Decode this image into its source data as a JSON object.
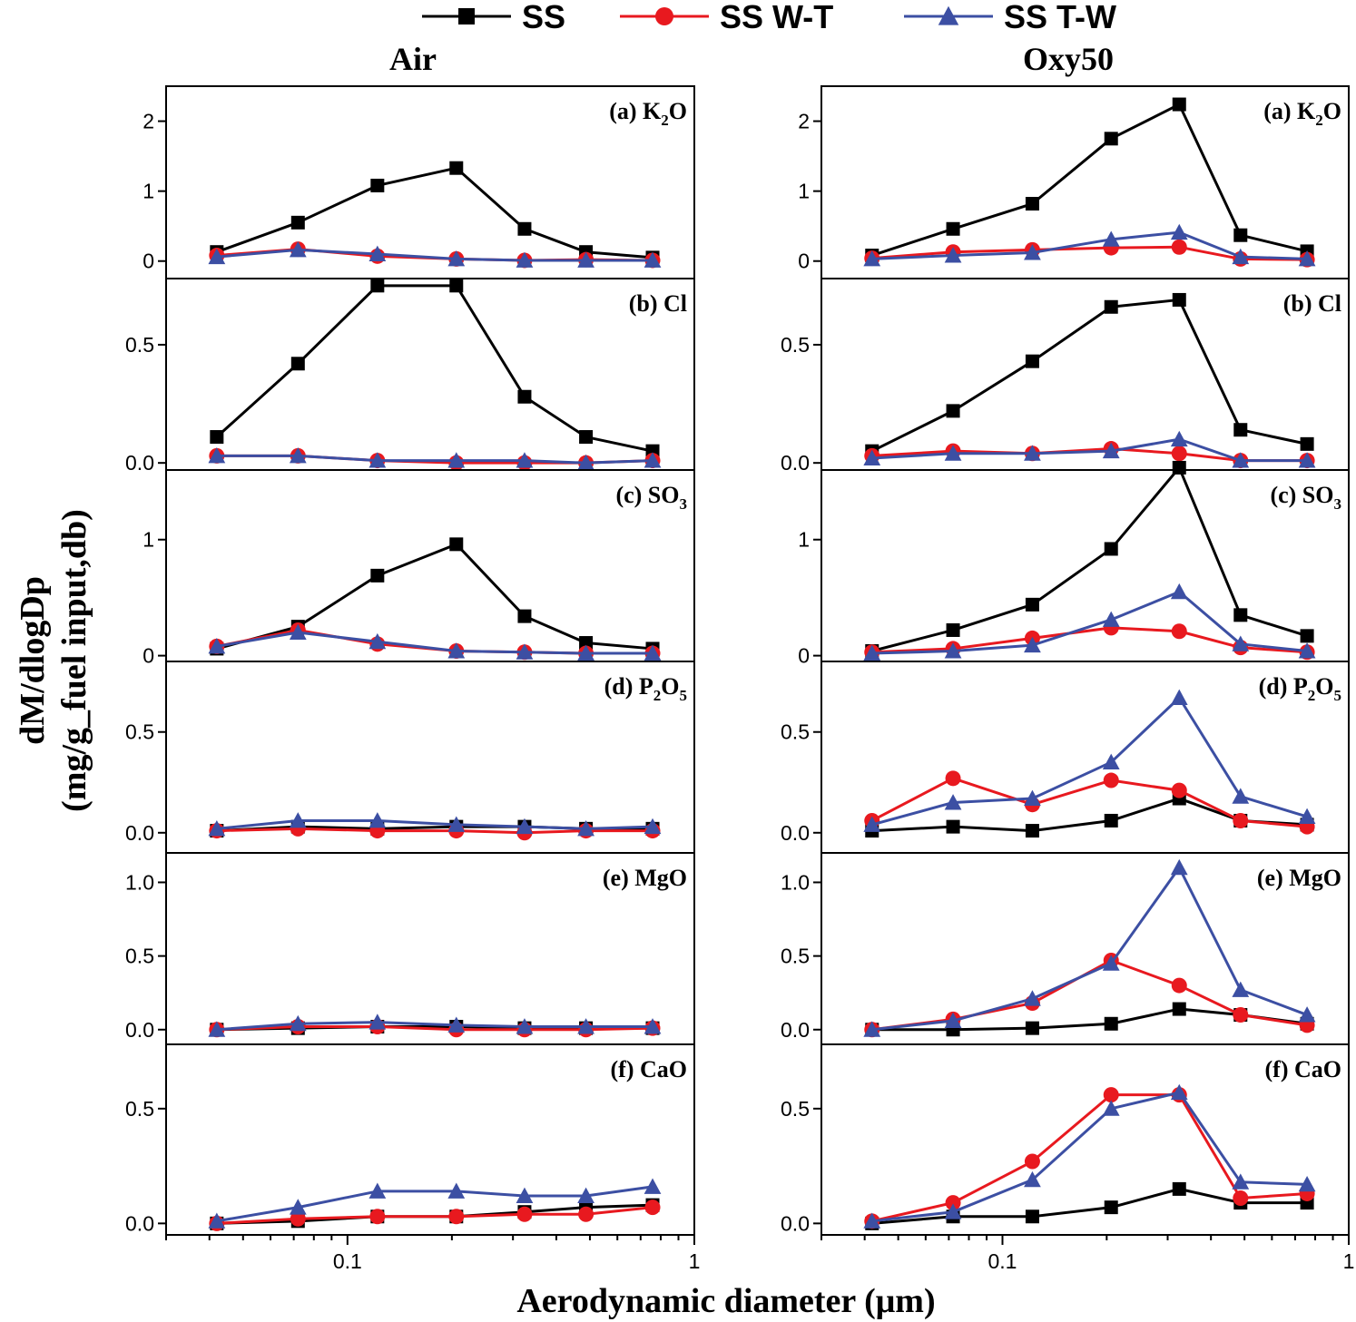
{
  "chart_data": {
    "type": "line",
    "xscale": "log",
    "xlim": [
      0.03,
      1
    ],
    "xticks": [
      {
        "value": 0.1,
        "label": "0.1"
      },
      {
        "value": 1,
        "label": "1"
      }
    ],
    "x": [
      0.042,
      0.072,
      0.122,
      0.206,
      0.324,
      0.487,
      0.758
    ],
    "xlabel": "Aerodynamic diameter (μm)",
    "ylabel_line1": "dM/dlogDp",
    "ylabel_line2": "(mg/g_fuel input,db)",
    "legend": [
      {
        "name": "SS",
        "color": "#000000",
        "marker": "square"
      },
      {
        "name": "SS W-T",
        "color": "#e8191f",
        "marker": "circle"
      },
      {
        "name": "SS T-W",
        "color": "#3c4fa3",
        "marker": "triangle"
      }
    ],
    "columns": [
      {
        "title": "Air",
        "panels": [
          {
            "label": "(a) K",
            "sub": "2",
            "tail": "O",
            "ylim": [
              -0.25,
              2.5
            ],
            "yticks": [
              {
                "value": 0,
                "label": "0"
              },
              {
                "value": 1,
                "label": "1"
              },
              {
                "value": 2,
                "label": "2"
              }
            ],
            "series": [
              {
                "name": "SS",
                "values": [
                  0.13,
                  0.55,
                  1.08,
                  1.33,
                  0.46,
                  0.13,
                  0.05
                ]
              },
              {
                "name": "SS W-T",
                "values": [
                  0.08,
                  0.17,
                  0.07,
                  0.03,
                  0.01,
                  0.02,
                  0.01
                ]
              },
              {
                "name": "SS T-W",
                "values": [
                  0.06,
                  0.16,
                  0.1,
                  0.03,
                  0.01,
                  0.01,
                  0.01
                ]
              }
            ]
          },
          {
            "label": "(b) Cl",
            "sub": "",
            "tail": "",
            "ylim": [
              -0.03,
              0.78
            ],
            "yticks": [
              {
                "value": 0,
                "label": "0.0"
              },
              {
                "value": 0.5,
                "label": "0.5"
              }
            ],
            "series": [
              {
                "name": "SS",
                "values": [
                  0.11,
                  0.42,
                  0.75,
                  0.75,
                  0.28,
                  0.11,
                  0.05
                ]
              },
              {
                "name": "SS W-T",
                "values": [
                  0.03,
                  0.03,
                  0.01,
                  0.0,
                  0.0,
                  0.0,
                  0.01
                ]
              },
              {
                "name": "SS T-W",
                "values": [
                  0.03,
                  0.03,
                  0.01,
                  0.01,
                  0.01,
                  0.0,
                  0.01
                ]
              }
            ]
          },
          {
            "label": "(c) SO",
            "sub": "3",
            "tail": "",
            "ylim": [
              -0.05,
              1.6
            ],
            "yticks": [
              {
                "value": 0,
                "label": "0"
              },
              {
                "value": 1,
                "label": "1"
              }
            ],
            "series": [
              {
                "name": "SS",
                "values": [
                  0.06,
                  0.25,
                  0.69,
                  0.96,
                  0.34,
                  0.11,
                  0.06
                ]
              },
              {
                "name": "SS W-T",
                "values": [
                  0.08,
                  0.22,
                  0.1,
                  0.04,
                  0.03,
                  0.02,
                  0.02
                ]
              },
              {
                "name": "SS T-W",
                "values": [
                  0.08,
                  0.2,
                  0.12,
                  0.04,
                  0.03,
                  0.02,
                  0.02
                ]
              }
            ]
          },
          {
            "label": "(d) P",
            "sub": "2",
            "tail": "O",
            "sub2": "5",
            "ylim": [
              -0.1,
              0.85
            ],
            "yticks": [
              {
                "value": 0,
                "label": "0.0"
              },
              {
                "value": 0.5,
                "label": "0.5"
              }
            ],
            "series": [
              {
                "name": "SS",
                "values": [
                  0.01,
                  0.03,
                  0.02,
                  0.03,
                  0.03,
                  0.02,
                  0.02
                ]
              },
              {
                "name": "SS W-T",
                "values": [
                  0.01,
                  0.02,
                  0.01,
                  0.01,
                  0.0,
                  0.01,
                  0.01
                ]
              },
              {
                "name": "SS T-W",
                "values": [
                  0.02,
                  0.06,
                  0.06,
                  0.04,
                  0.03,
                  0.02,
                  0.03
                ]
              }
            ]
          },
          {
            "label": "(e) MgO",
            "sub": "",
            "tail": "",
            "ylim": [
              -0.1,
              1.2
            ],
            "yticks": [
              {
                "value": 0,
                "label": "0.0"
              },
              {
                "value": 0.5,
                "label": "0.5"
              },
              {
                "value": 1,
                "label": "1.0"
              }
            ],
            "series": [
              {
                "name": "SS",
                "values": [
                  0.0,
                  0.01,
                  0.02,
                  0.02,
                  0.01,
                  0.01,
                  0.01
                ]
              },
              {
                "name": "SS W-T",
                "values": [
                  0.0,
                  0.02,
                  0.02,
                  0.0,
                  0.0,
                  0.0,
                  0.01
                ]
              },
              {
                "name": "SS T-W",
                "values": [
                  0.0,
                  0.04,
                  0.05,
                  0.03,
                  0.02,
                  0.02,
                  0.02
                ]
              }
            ]
          },
          {
            "label": "(f) CaO",
            "sub": "",
            "tail": "",
            "ylim": [
              -0.05,
              0.78
            ],
            "yticks": [
              {
                "value": 0,
                "label": "0.0"
              },
              {
                "value": 0.5,
                "label": "0.5"
              }
            ],
            "series": [
              {
                "name": "SS",
                "values": [
                  0.0,
                  0.01,
                  0.03,
                  0.03,
                  0.05,
                  0.07,
                  0.08
                ]
              },
              {
                "name": "SS W-T",
                "values": [
                  0.0,
                  0.02,
                  0.03,
                  0.03,
                  0.04,
                  0.04,
                  0.07
                ]
              },
              {
                "name": "SS T-W",
                "values": [
                  0.01,
                  0.07,
                  0.14,
                  0.14,
                  0.12,
                  0.12,
                  0.16
                ]
              }
            ]
          }
        ]
      },
      {
        "title": "Oxy50",
        "panels": [
          {
            "label": "(a) K",
            "sub": "2",
            "tail": "O",
            "ylim": [
              -0.25,
              2.5
            ],
            "yticks": [
              {
                "value": 0,
                "label": "0"
              },
              {
                "value": 1,
                "label": "1"
              },
              {
                "value": 2,
                "label": "2"
              }
            ],
            "series": [
              {
                "name": "SS",
                "values": [
                  0.08,
                  0.46,
                  0.82,
                  1.75,
                  2.24,
                  0.37,
                  0.14
                ]
              },
              {
                "name": "SS W-T",
                "values": [
                  0.04,
                  0.13,
                  0.16,
                  0.19,
                  0.2,
                  0.03,
                  0.02
                ]
              },
              {
                "name": "SS T-W",
                "values": [
                  0.03,
                  0.08,
                  0.12,
                  0.31,
                  0.41,
                  0.06,
                  0.03
                ]
              }
            ]
          },
          {
            "label": "(b) Cl",
            "sub": "",
            "tail": "",
            "ylim": [
              -0.03,
              0.78
            ],
            "yticks": [
              {
                "value": 0,
                "label": "0.0"
              },
              {
                "value": 0.5,
                "label": "0.5"
              }
            ],
            "series": [
              {
                "name": "SS",
                "values": [
                  0.05,
                  0.22,
                  0.43,
                  0.66,
                  0.69,
                  0.14,
                  0.08
                ]
              },
              {
                "name": "SS W-T",
                "values": [
                  0.03,
                  0.05,
                  0.04,
                  0.06,
                  0.04,
                  0.01,
                  0.01
                ]
              },
              {
                "name": "SS T-W",
                "values": [
                  0.02,
                  0.04,
                  0.04,
                  0.05,
                  0.1,
                  0.01,
                  0.01
                ]
              }
            ]
          },
          {
            "label": "(c) SO",
            "sub": "3",
            "tail": "",
            "ylim": [
              -0.05,
              1.6
            ],
            "yticks": [
              {
                "value": 0,
                "label": "0"
              },
              {
                "value": 1,
                "label": "1"
              }
            ],
            "series": [
              {
                "name": "SS",
                "values": [
                  0.04,
                  0.22,
                  0.44,
                  0.92,
                  1.62,
                  0.35,
                  0.17
                ]
              },
              {
                "name": "SS W-T",
                "values": [
                  0.03,
                  0.06,
                  0.15,
                  0.24,
                  0.21,
                  0.07,
                  0.03
                ]
              },
              {
                "name": "SS T-W",
                "values": [
                  0.02,
                  0.04,
                  0.09,
                  0.31,
                  0.55,
                  0.1,
                  0.04
                ]
              }
            ]
          },
          {
            "label": "(d) P",
            "sub": "2",
            "tail": "O",
            "sub2": "5",
            "ylim": [
              -0.1,
              0.85
            ],
            "yticks": [
              {
                "value": 0,
                "label": "0.0"
              },
              {
                "value": 0.5,
                "label": "0.5"
              }
            ],
            "series": [
              {
                "name": "SS",
                "values": [
                  0.01,
                  0.03,
                  0.01,
                  0.06,
                  0.17,
                  0.06,
                  0.04
                ]
              },
              {
                "name": "SS W-T",
                "values": [
                  0.06,
                  0.27,
                  0.14,
                  0.26,
                  0.21,
                  0.06,
                  0.03
                ]
              },
              {
                "name": "SS T-W",
                "values": [
                  0.04,
                  0.15,
                  0.17,
                  0.35,
                  0.67,
                  0.18,
                  0.08
                ]
              }
            ]
          },
          {
            "label": "(e) MgO",
            "sub": "",
            "tail": "",
            "ylim": [
              -0.1,
              1.2
            ],
            "yticks": [
              {
                "value": 0,
                "label": "0.0"
              },
              {
                "value": 0.5,
                "label": "0.5"
              },
              {
                "value": 1,
                "label": "1.0"
              }
            ],
            "series": [
              {
                "name": "SS",
                "values": [
                  0.0,
                  0.0,
                  0.01,
                  0.04,
                  0.14,
                  0.1,
                  0.04
                ]
              },
              {
                "name": "SS W-T",
                "values": [
                  0.0,
                  0.07,
                  0.18,
                  0.47,
                  0.3,
                  0.1,
                  0.03
                ]
              },
              {
                "name": "SS T-W",
                "values": [
                  0.0,
                  0.06,
                  0.21,
                  0.45,
                  1.1,
                  0.27,
                  0.1
                ]
              }
            ]
          },
          {
            "label": "(f) CaO",
            "sub": "",
            "tail": "",
            "ylim": [
              -0.05,
              0.78
            ],
            "yticks": [
              {
                "value": 0,
                "label": "0.0"
              },
              {
                "value": 0.5,
                "label": "0.5"
              }
            ],
            "series": [
              {
                "name": "SS",
                "values": [
                  0.0,
                  0.03,
                  0.03,
                  0.07,
                  0.15,
                  0.09,
                  0.09
                ]
              },
              {
                "name": "SS W-T",
                "values": [
                  0.01,
                  0.09,
                  0.27,
                  0.56,
                  0.56,
                  0.11,
                  0.13
                ]
              },
              {
                "name": "SS T-W",
                "values": [
                  0.01,
                  0.05,
                  0.19,
                  0.5,
                  0.57,
                  0.18,
                  0.17
                ]
              }
            ]
          }
        ]
      }
    ]
  }
}
